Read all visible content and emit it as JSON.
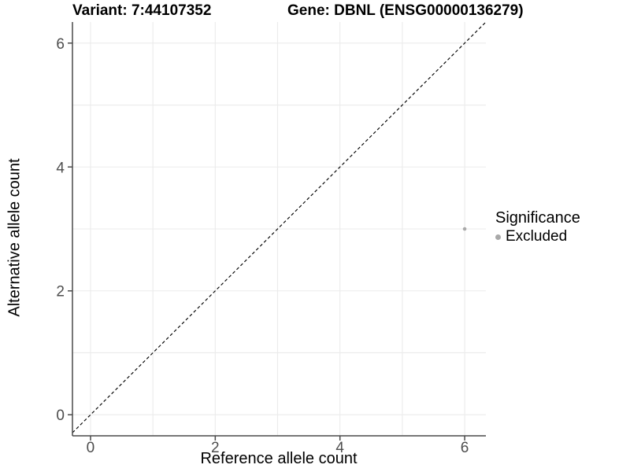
{
  "chart_data": {
    "type": "scatter",
    "title_left": "Variant: 7:44107352",
    "title_right": "Gene: DBNL (ENSG00000136279)",
    "xlabel": "Reference allele count",
    "ylabel": "Alternative allele count",
    "xlim": [
      -0.29,
      6.34
    ],
    "ylim": [
      -0.34,
      6.34
    ],
    "xticks": [
      0,
      2,
      4,
      6
    ],
    "yticks": [
      0,
      2,
      4,
      6
    ],
    "grid_positions": [
      0,
      1,
      2,
      3,
      4,
      5,
      6
    ],
    "grid_on": true,
    "points": [
      {
        "x": 6,
        "y": 3,
        "significance": "Excluded"
      }
    ],
    "identity_line": {
      "slope": 1,
      "intercept": 0,
      "style": "dashed",
      "color": "#000000"
    },
    "legend": {
      "title": "Significance",
      "position": "right",
      "entries": [
        {
          "label": "Excluded",
          "color": "#a9a9a9"
        }
      ]
    },
    "colors": {
      "background": "#ffffff",
      "grid": "#ebebeb",
      "axis_line": "#4a4a4a",
      "tick_label": "#4d4d4d",
      "point": "#a9a9a9",
      "text": "#000000"
    }
  }
}
